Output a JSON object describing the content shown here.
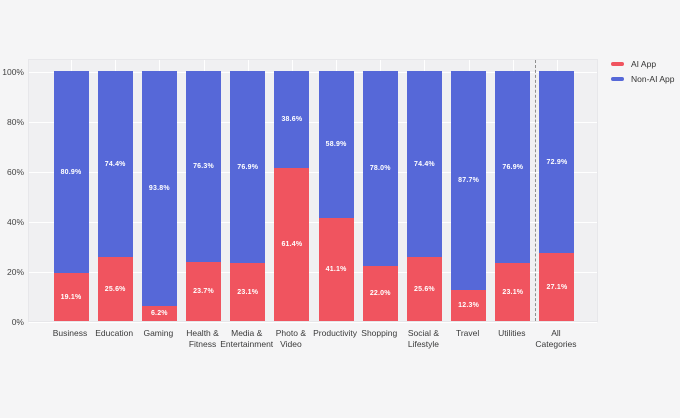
{
  "colors": {
    "page_background": "#f5f5f6",
    "plot_background": "#f0f0f2",
    "grid_line": "#ffffff",
    "plot_border": "#e7e7ea",
    "separator_line": "#8f8f8f",
    "ai_app": "#f0545f",
    "non_ai_app": "#5668d8",
    "axis_text": "#3a3a3a",
    "bar_label_text": "#ffffff"
  },
  "chart_data": {
    "type": "bar",
    "stacked": true,
    "normalized": "percent",
    "title": "",
    "xlabel": "",
    "ylabel": "",
    "grid": true,
    "legend_position": "top-right",
    "ylim": [
      0,
      105
    ],
    "y_ticks": [
      {
        "value": 0,
        "label": "0%"
      },
      {
        "value": 20,
        "label": "20%"
      },
      {
        "value": 40,
        "label": "40%"
      },
      {
        "value": 60,
        "label": "60%"
      },
      {
        "value": 80,
        "label": "80%"
      },
      {
        "value": 100,
        "label": "100%"
      }
    ],
    "categories": [
      "Business",
      "Education",
      "Gaming",
      "Health &\nFitness",
      "Media &\nEntertainment",
      "Photo &\nVideo",
      "Productivity",
      "Shopping",
      "Social &\nLifestyle",
      "Travel",
      "Utilities",
      "All\nCategories"
    ],
    "series": [
      {
        "name": "AI App",
        "color": "#f0545f",
        "values": [
          19.1,
          25.6,
          6.2,
          23.7,
          23.1,
          61.4,
          41.1,
          22.0,
          25.6,
          12.3,
          23.1,
          27.1
        ],
        "labels": [
          "19.1%",
          "25.6%",
          "6.2%",
          "23.7%",
          "23.1%",
          "61.4%",
          "41.1%",
          "22.0%",
          "25.6%",
          "12.3%",
          "23.1%",
          "27.1%"
        ]
      },
      {
        "name": "Non-AI App",
        "color": "#5668d8",
        "values": [
          80.9,
          74.4,
          93.8,
          76.3,
          76.9,
          38.6,
          58.9,
          78.0,
          74.4,
          87.7,
          76.9,
          72.9
        ],
        "labels": [
          "80.9%",
          "74.4%",
          "93.8%",
          "76.3%",
          "76.9%",
          "38.6%",
          "58.9%",
          "78.0%",
          "74.4%",
          "87.7%",
          "76.9%",
          "72.9%"
        ]
      }
    ],
    "separator_after_category": "Utilities",
    "separator_style": "dashed"
  }
}
